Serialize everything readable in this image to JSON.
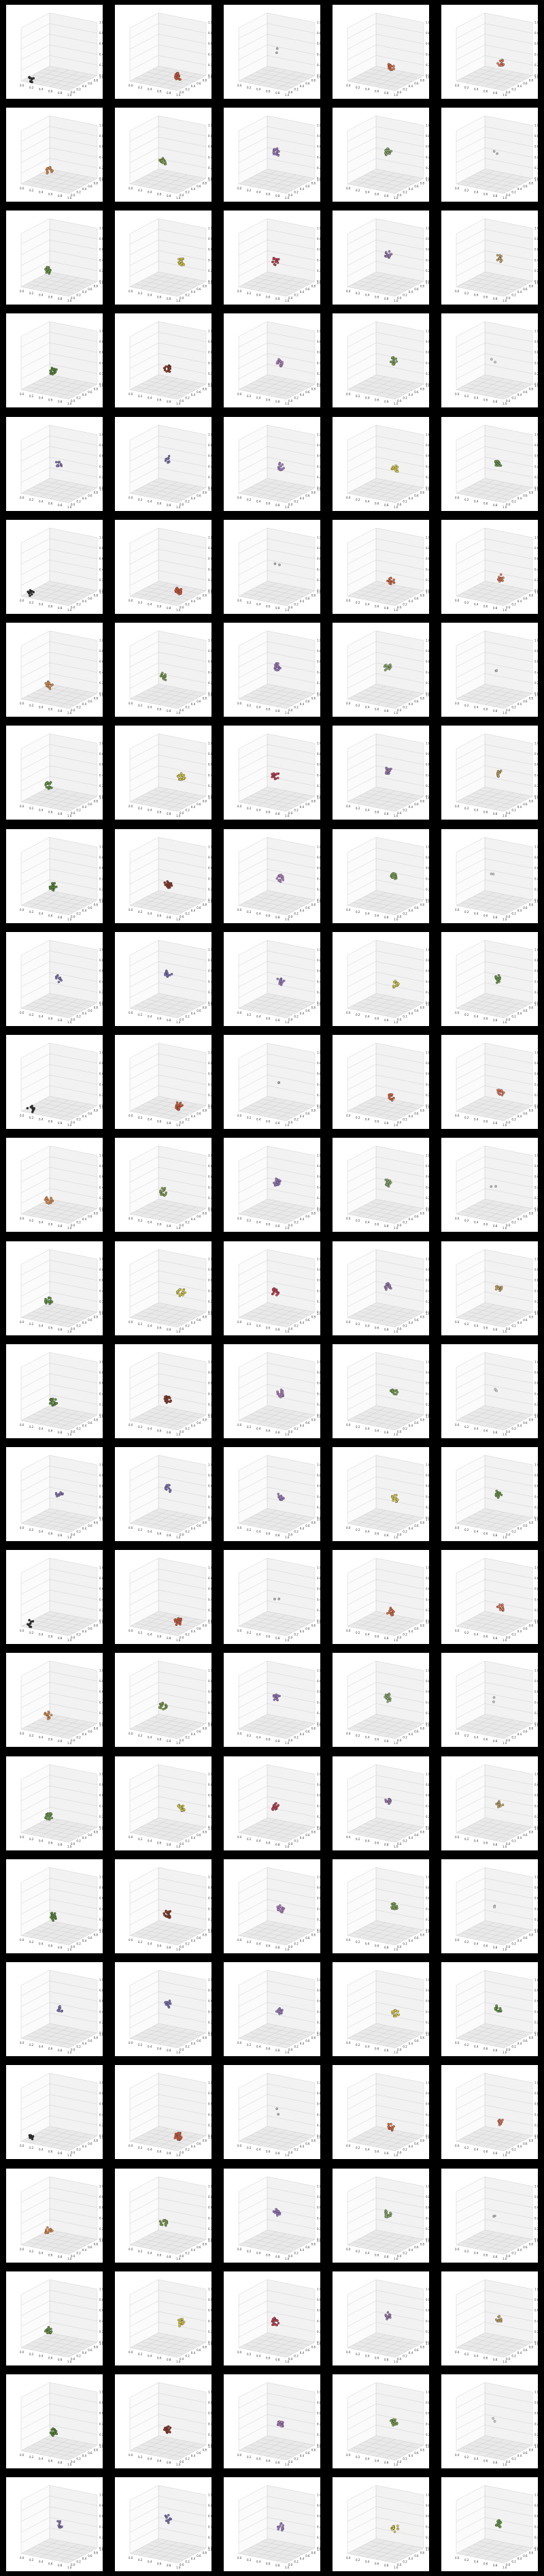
{
  "figure": {
    "background": "#000000",
    "rows": 25,
    "cols": 5,
    "panel_background": "#f0f0f0",
    "pane_colors": [
      "#e9e9e9",
      "#f2f2f2",
      "#fbfbfb"
    ],
    "grid_color": "#c6c6c6"
  },
  "chart_data": {
    "type": "scatter",
    "projection": "3d",
    "panel_count": 125,
    "grid": true,
    "axis_tick_labels": {
      "x": [
        "0.0",
        "0.2",
        "0.4",
        "0.6",
        "0.8",
        "1.0"
      ],
      "y": [
        "0.0",
        "0.2",
        "0.4",
        "0.6",
        "0.8",
        "1.0"
      ],
      "z": [
        "0.0",
        "0.2",
        "0.4",
        "0.6",
        "0.8",
        "1.0"
      ]
    },
    "clusters": [
      {
        "color": "#2f2f2f",
        "x": 0.15,
        "y": 0.1,
        "z": 0.05,
        "size": 10
      },
      {
        "color": "#d05a3a",
        "x": 0.75,
        "y": 0.45,
        "z": 0.1,
        "size": 22
      },
      {
        "color": "#aaaaaa",
        "x": 0.5,
        "y": 0.5,
        "z": 0.5,
        "size": 2
      },
      {
        "color": "#d86a40",
        "x": 0.55,
        "y": 0.6,
        "z": 0.2,
        "size": 16
      },
      {
        "color": "#e0765a",
        "x": 0.6,
        "y": 0.55,
        "z": 0.3,
        "size": 14
      },
      {
        "color": "#d98a4a",
        "x": 0.4,
        "y": 0.3,
        "z": 0.25,
        "size": 14
      },
      {
        "color": "#7a9a4a",
        "x": 0.4,
        "y": 0.5,
        "z": 0.35,
        "size": 16
      },
      {
        "color": "#9a78c0",
        "x": 0.5,
        "y": 0.5,
        "z": 0.55,
        "size": 18
      },
      {
        "color": "#8aa86a",
        "x": 0.55,
        "y": 0.5,
        "z": 0.55,
        "size": 18
      },
      {
        "color": "#bbbbbb",
        "x": 0.5,
        "y": 0.5,
        "z": 0.5,
        "size": 2
      },
      {
        "color": "#6a9a4a",
        "x": 0.4,
        "y": 0.3,
        "z": 0.3,
        "size": 20
      },
      {
        "color": "#d6c84a",
        "x": 0.75,
        "y": 0.55,
        "z": 0.45,
        "size": 18
      },
      {
        "color": "#c04050",
        "x": 0.5,
        "y": 0.45,
        "z": 0.45,
        "size": 18
      },
      {
        "color": "#9a7ab0",
        "x": 0.55,
        "y": 0.5,
        "z": 0.55,
        "size": 14
      },
      {
        "color": "#c0a060",
        "x": 0.6,
        "y": 0.5,
        "z": 0.5,
        "size": 12
      },
      {
        "color": "#5a8a3a",
        "x": 0.4,
        "y": 0.45,
        "z": 0.3,
        "size": 22
      },
      {
        "color": "#8a3a2a",
        "x": 0.5,
        "y": 0.5,
        "z": 0.35,
        "size": 20
      },
      {
        "color": "#b080c0",
        "x": 0.55,
        "y": 0.55,
        "z": 0.45,
        "size": 18
      },
      {
        "color": "#7aa050",
        "x": 0.65,
        "y": 0.55,
        "z": 0.5,
        "size": 16
      },
      {
        "color": "#cccccc",
        "x": 0.5,
        "y": 0.5,
        "z": 0.5,
        "size": 2
      },
      {
        "color": "#8070b0",
        "x": 0.5,
        "y": 0.5,
        "z": 0.5,
        "size": 10
      },
      {
        "color": "#7a70b0",
        "x": 0.5,
        "y": 0.5,
        "z": 0.6,
        "size": 12
      },
      {
        "color": "#9a7abf",
        "x": 0.55,
        "y": 0.55,
        "z": 0.45,
        "size": 12
      },
      {
        "color": "#d6c84a",
        "x": 0.7,
        "y": 0.5,
        "z": 0.45,
        "size": 14
      },
      {
        "color": "#6a9a4a",
        "x": 0.55,
        "y": 0.55,
        "z": 0.5,
        "size": 16
      }
    ]
  }
}
